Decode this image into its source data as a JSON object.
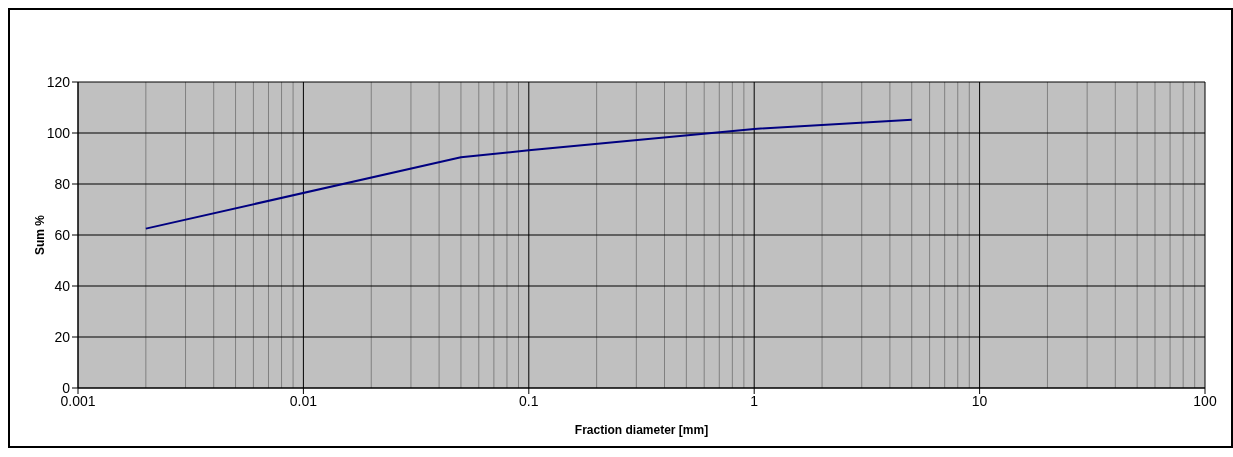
{
  "chart_data": {
    "type": "line",
    "xlabel": "Fraction diameter [mm]",
    "ylabel": "Sum %",
    "log": "x",
    "x": [
      0.002,
      0.05,
      0.1,
      1,
      5
    ],
    "series": [
      {
        "color": "#000080",
        "values": [
          62.5,
          90.5,
          93.2,
          101.6,
          105.2
        ]
      }
    ],
    "xlim": [
      0.001,
      100
    ],
    "xticks": [
      0.001,
      0.01,
      0.1,
      1,
      10,
      100
    ],
    "ylim": [
      0,
      120
    ],
    "yticks": [
      0,
      20,
      40,
      60,
      80,
      100,
      120
    ],
    "grid": true,
    "marker": "none",
    "line_style": "solid"
  }
}
